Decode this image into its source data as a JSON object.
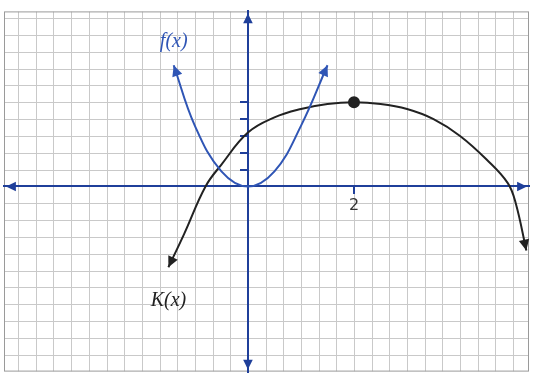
{
  "chart_data": {
    "type": "line",
    "xlim": [
      -4.6,
      5.3
    ],
    "ylim": [
      -11,
      10.4
    ],
    "xticks": [
      2
    ],
    "yticks": [
      1,
      2,
      3,
      4,
      5
    ],
    "tick_labels": "x",
    "grid": true,
    "series": [
      {
        "name": "f(x)",
        "color": "#2f55b5",
        "x": [
          -1.4,
          -1,
          -0.5,
          0,
          0.5,
          1,
          1.5
        ],
        "values": [
          7.2,
          3.6,
          0.9,
          0,
          0.9,
          3.6,
          7.2
        ]
      },
      {
        "name": "K(x)",
        "color": "#222222",
        "marker": "vertex",
        "x": [
          -1.5,
          -1.2,
          -0.8,
          -0.5,
          0,
          0.5,
          1,
          1.5,
          2,
          2.5,
          3,
          3.5,
          4,
          4.5,
          4.9,
          5.05,
          5.25
        ],
        "values": [
          -4.8,
          -2.8,
          0,
          1.3,
          3.2,
          4.1,
          4.6,
          4.9,
          5,
          4.9,
          4.6,
          4.0,
          3.0,
          1.6,
          0.2,
          -1.0,
          -3.8
        ]
      }
    ]
  }
}
